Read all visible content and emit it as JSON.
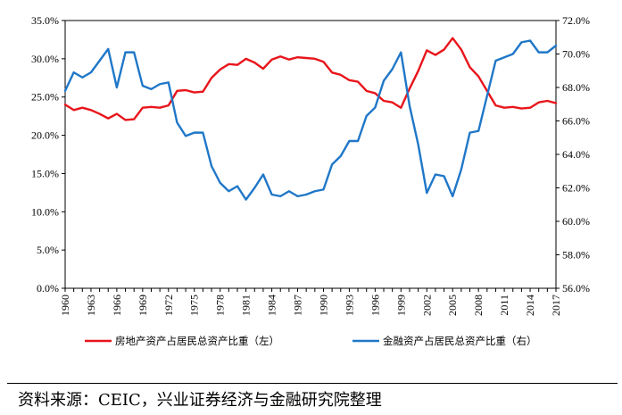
{
  "chart_data": {
    "type": "line",
    "title": "",
    "xlabel": "",
    "ylabel_left": "",
    "ylabel_right": "",
    "x": [
      1960,
      1961,
      1962,
      1963,
      1964,
      1965,
      1966,
      1967,
      1968,
      1969,
      1970,
      1971,
      1972,
      1973,
      1974,
      1975,
      1976,
      1977,
      1978,
      1979,
      1980,
      1981,
      1982,
      1983,
      1984,
      1985,
      1986,
      1987,
      1988,
      1989,
      1990,
      1991,
      1992,
      1993,
      1994,
      1995,
      1996,
      1997,
      1998,
      1999,
      2000,
      2001,
      2002,
      2003,
      2004,
      2005,
      2006,
      2007,
      2008,
      2009,
      2010,
      2011,
      2012,
      2013,
      2014,
      2015,
      2016,
      2017
    ],
    "x_tick_labels": [
      "1960",
      "1963",
      "1966",
      "1969",
      "1972",
      "1975",
      "1978",
      "1981",
      "1984",
      "1987",
      "1990",
      "1993",
      "1996",
      "1999",
      "2002",
      "2005",
      "2008",
      "2011",
      "2014",
      "2017"
    ],
    "y_left": {
      "range": [
        0,
        35
      ],
      "ticks": [
        "0.0%",
        "5.0%",
        "10.0%",
        "15.0%",
        "20.0%",
        "25.0%",
        "30.0%",
        "35.0%"
      ]
    },
    "y_right": {
      "range": [
        56,
        72
      ],
      "ticks": [
        "56.0%",
        "58.0%",
        "60.0%",
        "62.0%",
        "64.0%",
        "66.0%",
        "68.0%",
        "70.0%",
        "72.0%"
      ]
    },
    "grid": false,
    "legend_position": "bottom",
    "series": [
      {
        "name": "房地产资产占居民总资产比重（左）",
        "axis": "left",
        "color": "#e8151b",
        "values": [
          24.0,
          23.3,
          23.6,
          23.3,
          22.8,
          22.2,
          22.8,
          22.0,
          22.1,
          23.6,
          23.7,
          23.6,
          23.9,
          25.8,
          25.9,
          25.6,
          25.7,
          27.5,
          28.6,
          29.3,
          29.2,
          30.0,
          29.5,
          28.7,
          29.9,
          30.3,
          29.9,
          30.2,
          30.1,
          30.0,
          29.6,
          28.2,
          27.9,
          27.2,
          27.0,
          25.8,
          25.5,
          24.5,
          24.3,
          23.6,
          26.1,
          28.4,
          31.1,
          30.5,
          31.2,
          32.7,
          31.2,
          28.9,
          27.7,
          25.8,
          23.9,
          23.6,
          23.7,
          23.5,
          23.6,
          24.3,
          24.5,
          24.2
        ]
      },
      {
        "name": "金融资产占居民总资产比重（右）",
        "axis": "right",
        "color": "#1f77c8",
        "values": [
          67.8,
          68.9,
          68.6,
          68.9,
          69.6,
          70.3,
          68.0,
          70.1,
          70.1,
          68.1,
          67.9,
          68.2,
          68.3,
          65.9,
          65.1,
          65.3,
          65.3,
          63.3,
          62.3,
          61.8,
          62.1,
          61.3,
          62.0,
          62.8,
          61.6,
          61.5,
          61.8,
          61.5,
          61.6,
          61.8,
          61.9,
          63.4,
          63.9,
          64.8,
          64.8,
          66.3,
          66.8,
          68.4,
          69.1,
          70.1,
          66.9,
          64.6,
          61.7,
          62.8,
          62.7,
          61.5,
          63.1,
          65.3,
          65.4,
          67.5,
          69.6,
          69.8,
          70.0,
          70.7,
          70.8,
          70.1,
          70.1,
          70.5
        ]
      }
    ]
  },
  "source_note": "资料来源：CEIC，兴业证券经济与金融研究院整理"
}
